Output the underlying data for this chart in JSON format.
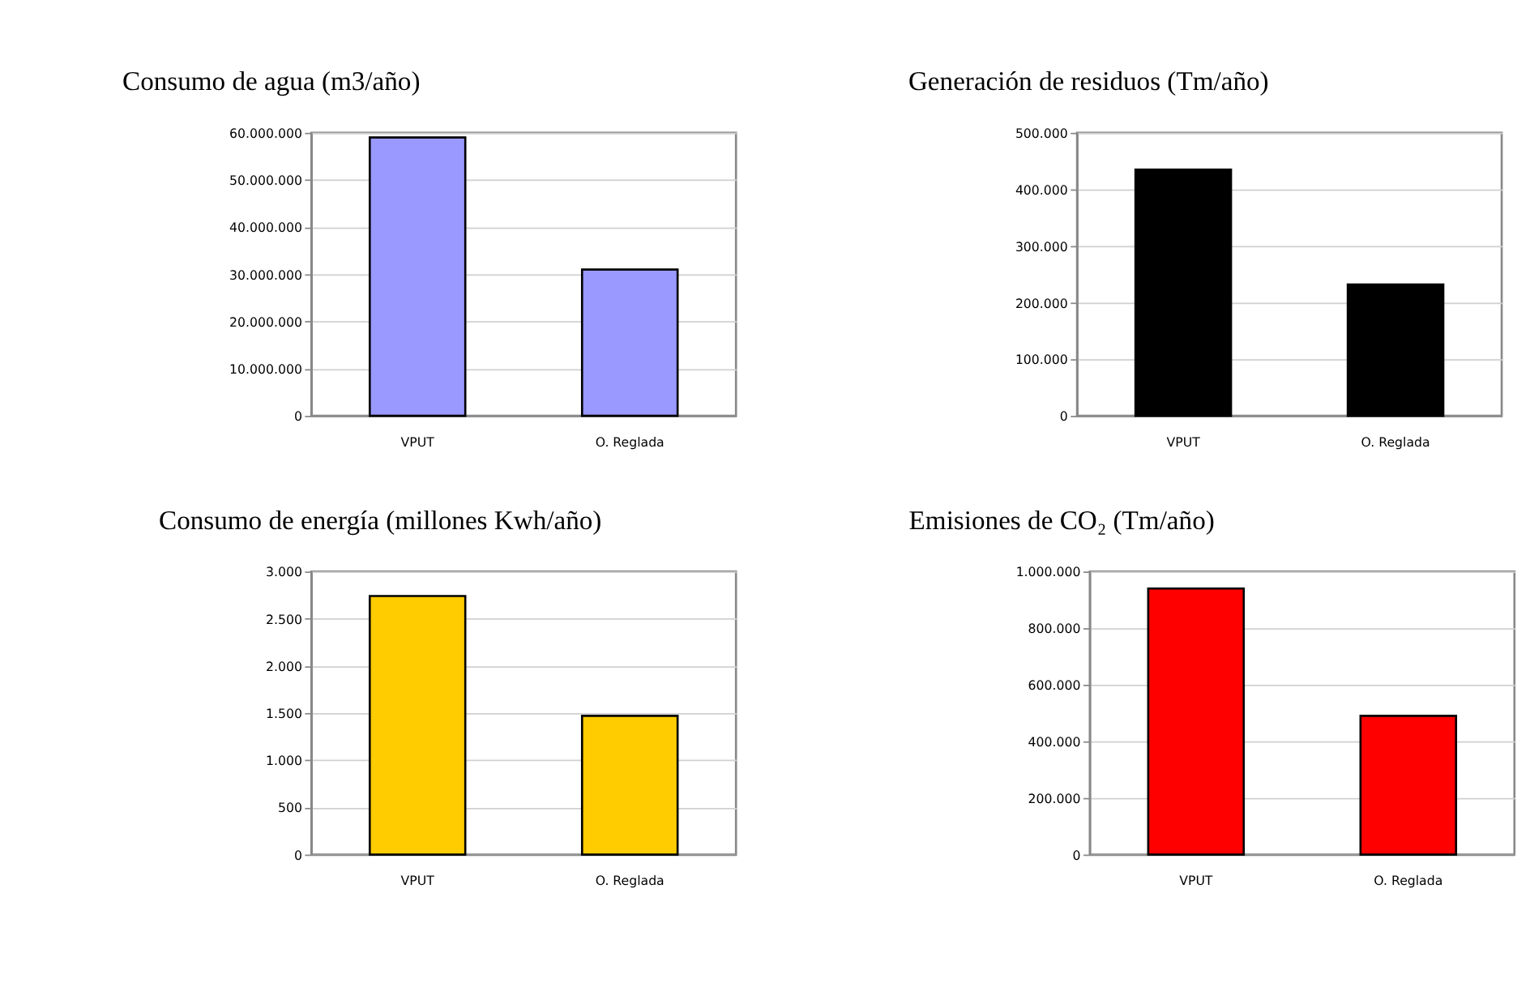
{
  "chart_data": [
    {
      "type": "bar",
      "title": "Consumo de agua (m3/año)",
      "categories": [
        "VPUT",
        "O. Reglada"
      ],
      "values": [
        59000000,
        31000000
      ],
      "color": "#9999ff",
      "ylim": [
        0,
        60000000
      ],
      "yticks": [
        {
          "value": 0,
          "label": "0"
        },
        {
          "value": 10000000,
          "label": "10.000.000"
        },
        {
          "value": 20000000,
          "label": "20.000.000"
        },
        {
          "value": 30000000,
          "label": "30.000.000"
        },
        {
          "value": 40000000,
          "label": "40.000.000"
        },
        {
          "value": 50000000,
          "label": "50.000.000"
        },
        {
          "value": 60000000,
          "label": "60.000.000"
        }
      ],
      "grid": "y"
    },
    {
      "type": "bar",
      "title": "Generación de residuos (Tm/año)",
      "categories": [
        "VPUT",
        "O. Reglada"
      ],
      "values": [
        435000,
        232000
      ],
      "color": "#000000",
      "ylim": [
        0,
        500000
      ],
      "yticks": [
        {
          "value": 0,
          "label": "0"
        },
        {
          "value": 100000,
          "label": "100.000"
        },
        {
          "value": 200000,
          "label": "200.000"
        },
        {
          "value": 300000,
          "label": "300.000"
        },
        {
          "value": 400000,
          "label": "400.000"
        },
        {
          "value": 500000,
          "label": "500.000"
        }
      ],
      "grid": "y"
    },
    {
      "type": "bar",
      "title": "Consumo de energía (millones Kwh/año)",
      "categories": [
        "VPUT",
        "O. Reglada"
      ],
      "values": [
        2740,
        1470
      ],
      "color": "#ffcc00",
      "ylim": [
        0,
        3000
      ],
      "yticks": [
        {
          "value": 0,
          "label": "0"
        },
        {
          "value": 500,
          "label": "500"
        },
        {
          "value": 1000,
          "label": "1.000"
        },
        {
          "value": 1500,
          "label": "1.500"
        },
        {
          "value": 2000,
          "label": "2.000"
        },
        {
          "value": 2500,
          "label": "2.500"
        },
        {
          "value": 3000,
          "label": "3.000"
        }
      ],
      "grid": "y"
    },
    {
      "type": "bar",
      "title": "Emisiones de CO₂ (Tm/año)",
      "categories": [
        "VPUT",
        "O. Reglada"
      ],
      "values": [
        940000,
        490000
      ],
      "color": "#ff0000",
      "ylim": [
        0,
        1000000
      ],
      "yticks": [
        {
          "value": 0,
          "label": "0"
        },
        {
          "value": 200000,
          "label": "200.000"
        },
        {
          "value": 400000,
          "label": "400.000"
        },
        {
          "value": 600000,
          "label": "600.000"
        },
        {
          "value": 800000,
          "label": "800.000"
        },
        {
          "value": 1000000,
          "label": "1.000.000"
        }
      ],
      "grid": "y"
    }
  ]
}
